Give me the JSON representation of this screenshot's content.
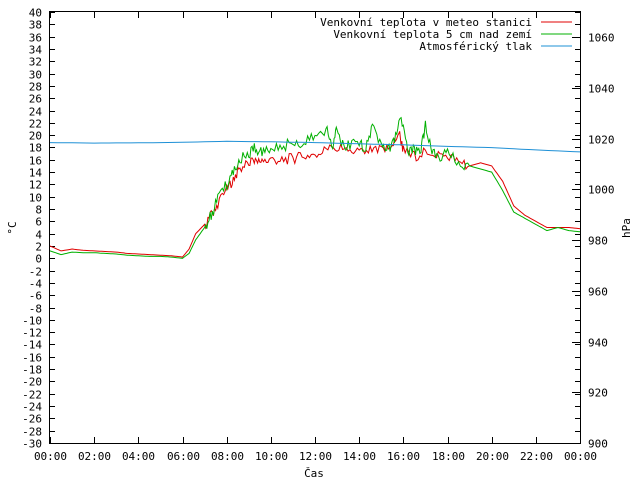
{
  "chart_data": {
    "type": "line",
    "xlabel": "Čas",
    "ylabel": "°C",
    "y2label": "hPa",
    "x_ticks": [
      "00:00",
      "02:00",
      "04:00",
      "06:00",
      "08:00",
      "10:00",
      "12:00",
      "14:00",
      "16:00",
      "18:00",
      "20:00",
      "22:00",
      "00:00"
    ],
    "xlim_hours": [
      0,
      24
    ],
    "ylim": [
      -30,
      40
    ],
    "y_tick_step": 2,
    "y2lim": [
      900,
      1070
    ],
    "y2_ticks": [
      900,
      920,
      940,
      960,
      980,
      1000,
      1020,
      1040,
      1060
    ],
    "grid": false,
    "legend_position": "top-right",
    "series": [
      {
        "name": "Venkovní teplota v meteo stanici",
        "color": "#e00000",
        "axis": "left",
        "x": [
          0,
          0.5,
          1,
          1.5,
          2,
          2.5,
          3,
          3.5,
          4,
          4.5,
          5,
          5.5,
          6,
          6.3,
          6.6,
          7,
          7.3,
          7.6,
          8,
          8.3,
          8.6,
          9,
          9.3,
          9.6,
          10,
          10.5,
          11,
          11.5,
          12,
          12.5,
          13,
          13.5,
          14,
          14.5,
          15,
          15.5,
          15.8,
          16,
          16.5,
          17,
          17.5,
          18,
          18.5,
          19,
          19.5,
          20,
          20.5,
          21,
          21.5,
          22,
          22.5,
          23,
          23.5,
          24
        ],
        "y": [
          2,
          1.2,
          1.5,
          1.3,
          1.2,
          1.1,
          1.0,
          0.8,
          0.7,
          0.6,
          0.5,
          0.4,
          0.2,
          1.5,
          4,
          5.5,
          7,
          9,
          11,
          13,
          14.5,
          15.5,
          16,
          15.5,
          16,
          16,
          16.2,
          16.5,
          17,
          17.5,
          18,
          17.5,
          17,
          17.5,
          17.5,
          18,
          20.5,
          17.5,
          16.5,
          17.5,
          17,
          16.5,
          16,
          15,
          15.5,
          15,
          12.5,
          8.5,
          7,
          6,
          5,
          5,
          5,
          4.8
        ]
      },
      {
        "name": "Venkovní teplota 5 cm nad zemí",
        "color": "#00b000",
        "axis": "left",
        "x": [
          0,
          0.5,
          1,
          1.5,
          2,
          2.5,
          3,
          3.5,
          4,
          4.5,
          5,
          5.5,
          6,
          6.3,
          6.6,
          7,
          7.3,
          7.6,
          8,
          8.3,
          8.6,
          9,
          9.3,
          9.6,
          10,
          10.5,
          11,
          11.5,
          12,
          12.5,
          12.8,
          13,
          13.3,
          13.5,
          14,
          14.3,
          14.6,
          15,
          15.3,
          15.6,
          15.9,
          16.2,
          16.5,
          16.8,
          17,
          17.3,
          17.6,
          18,
          18.5,
          19,
          19.5,
          20,
          20.5,
          21,
          21.5,
          22,
          22.5,
          23,
          23.5,
          24
        ],
        "y": [
          1.2,
          0.6,
          1.0,
          0.9,
          0.9,
          0.8,
          0.7,
          0.5,
          0.4,
          0.3,
          0.3,
          0.2,
          0.0,
          0.8,
          3,
          5,
          7,
          9.5,
          12,
          14,
          16,
          17,
          18,
          17,
          18,
          18,
          19,
          18.5,
          20,
          21,
          18,
          21.5,
          18,
          18.5,
          19,
          17.5,
          22,
          18,
          17.5,
          19,
          23,
          17.5,
          17.5,
          18,
          21.5,
          17,
          16.5,
          17,
          15.5,
          15,
          14.5,
          14,
          11,
          7.5,
          6.5,
          5.5,
          4.5,
          5,
          4.5,
          4.3
        ]
      },
      {
        "name": "Atmosférický tlak",
        "color": "#1e90d6",
        "axis": "right",
        "x": [
          0,
          2,
          4,
          6,
          8,
          10,
          12,
          14,
          16,
          18,
          20,
          22,
          24
        ],
        "y": [
          1018.5,
          1018.3,
          1018.4,
          1018.6,
          1019,
          1018.8,
          1018.5,
          1018,
          1017.6,
          1017,
          1016.5,
          1015.6,
          1014.8
        ]
      }
    ]
  }
}
